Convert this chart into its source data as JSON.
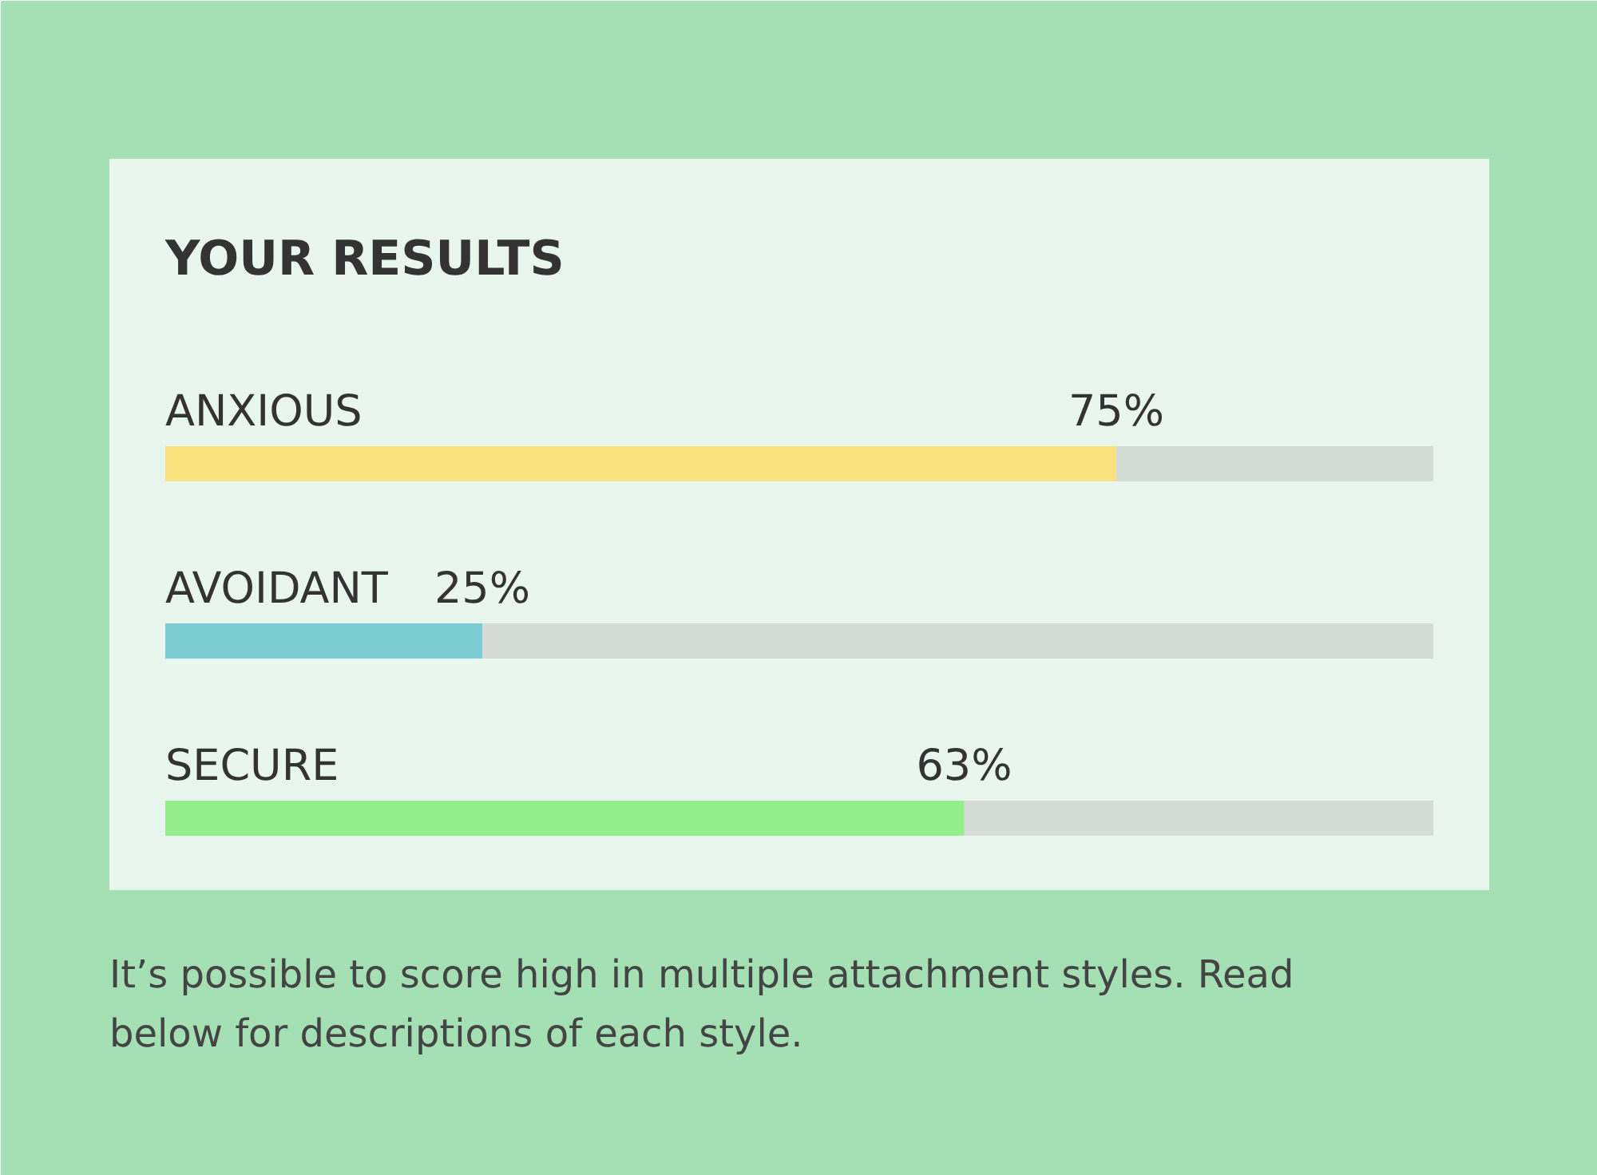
{
  "chart_data": {
    "type": "bar",
    "orientation": "horizontal",
    "title": "YOUR RESULTS",
    "categories": [
      "ANXIOUS",
      "AVOIDANT",
      "SECURE"
    ],
    "xlim": [
      0,
      100
    ],
    "colors": [
      "#fae17f",
      "#7ccbd3",
      "#95ee8c"
    ],
    "values": [
      75,
      25,
      63
    ],
    "value_labels": [
      "75%",
      "25%",
      "63%"
    ],
    "annotations": [
      "It’s possible to score high in multiple attachment styles. Read below for descriptions of each style."
    ]
  }
}
